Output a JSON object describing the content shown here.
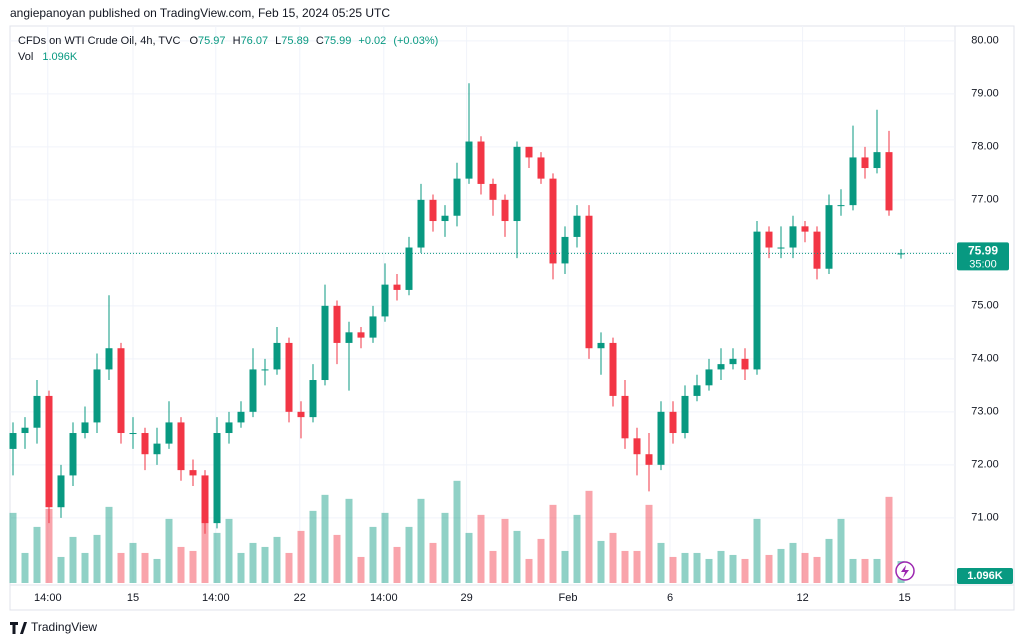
{
  "header": {
    "author_line": "angiepanoyan published on TradingView.com, Feb 15, 2024 05:25 UTC",
    "symbol": "CFDs on WTI Crude Oil, 4h, TVC",
    "ohlc_labels": [
      "O",
      "H",
      "L",
      "C"
    ],
    "vol_label": "Vol",
    "brand": "TradingView"
  },
  "chart_data": {
    "type": "candlestick",
    "open": [
      72.3,
      72.6,
      72.7,
      73.3,
      71.2,
      71.8,
      72.6,
      72.8,
      73.8,
      74.2,
      72.6,
      72.6,
      72.2,
      72.4,
      72.8,
      71.9,
      71.8,
      70.9,
      72.6,
      72.8,
      73.0,
      73.8,
      73.8,
      74.3,
      73.0,
      72.9,
      73.6,
      75.0,
      74.3,
      74.5,
      74.4,
      74.8,
      75.4,
      75.3,
      76.1,
      77.0,
      76.6,
      76.7,
      77.4,
      78.1,
      77.3,
      77.0,
      76.6,
      78.0,
      77.8,
      77.4,
      75.8,
      76.3,
      76.7,
      74.2,
      74.3,
      73.3,
      72.5,
      72.2,
      72.0,
      73.0,
      72.6,
      73.3,
      73.5,
      73.8,
      73.9,
      74.0,
      73.8,
      76.4,
      76.1,
      76.1,
      76.5,
      76.4,
      75.7,
      76.9,
      76.9,
      77.8,
      77.6,
      77.9,
      75.97
    ],
    "high": [
      72.8,
      72.9,
      73.6,
      73.4,
      72.0,
      72.8,
      73.1,
      74.1,
      75.2,
      74.3,
      72.9,
      72.7,
      72.7,
      73.2,
      72.9,
      72.1,
      71.9,
      72.9,
      73.0,
      73.2,
      74.2,
      74.0,
      74.6,
      74.4,
      73.2,
      73.9,
      75.4,
      75.1,
      74.7,
      74.6,
      75.0,
      75.8,
      75.6,
      76.3,
      77.3,
      77.1,
      76.9,
      77.7,
      79.2,
      78.2,
      77.4,
      77.1,
      78.1,
      78.0,
      77.9,
      77.5,
      76.5,
      76.9,
      76.9,
      74.5,
      74.4,
      73.6,
      72.7,
      72.6,
      73.2,
      73.2,
      73.5,
      73.7,
      74.0,
      74.2,
      74.2,
      74.2,
      76.6,
      76.5,
      76.5,
      76.7,
      76.6,
      76.5,
      77.1,
      77.2,
      78.4,
      78.0,
      78.7,
      78.3,
      76.07
    ],
    "low": [
      71.8,
      72.3,
      72.4,
      70.9,
      71.0,
      71.6,
      72.5,
      72.6,
      73.6,
      72.4,
      72.3,
      71.9,
      72.0,
      72.3,
      71.7,
      71.6,
      70.7,
      70.8,
      72.4,
      72.7,
      72.9,
      73.5,
      73.7,
      72.8,
      72.5,
      72.8,
      73.5,
      73.9,
      73.4,
      74.2,
      74.3,
      74.7,
      75.1,
      75.2,
      76.0,
      76.4,
      76.3,
      76.5,
      77.3,
      77.1,
      76.7,
      76.3,
      75.9,
      77.6,
      77.3,
      75.5,
      75.6,
      76.1,
      74.0,
      73.7,
      73.1,
      72.3,
      71.8,
      71.5,
      71.9,
      72.4,
      72.5,
      73.2,
      73.4,
      73.6,
      73.8,
      73.6,
      73.7,
      75.9,
      75.9,
      75.9,
      76.2,
      75.5,
      75.6,
      76.7,
      76.8,
      77.4,
      77.5,
      76.7,
      75.89
    ],
    "close": [
      72.6,
      72.7,
      73.3,
      71.2,
      71.8,
      72.6,
      72.8,
      73.8,
      74.2,
      72.6,
      72.6,
      72.2,
      72.4,
      72.8,
      71.9,
      71.8,
      70.9,
      72.6,
      72.8,
      73.0,
      73.8,
      73.8,
      74.3,
      73.0,
      72.9,
      73.6,
      75.0,
      74.3,
      74.5,
      74.4,
      74.8,
      75.4,
      75.3,
      76.1,
      77.0,
      76.6,
      76.7,
      77.4,
      78.1,
      77.3,
      77.0,
      76.6,
      78.0,
      77.8,
      77.4,
      75.8,
      76.3,
      76.7,
      74.2,
      74.3,
      73.3,
      72.5,
      72.2,
      72.0,
      73.0,
      72.6,
      73.3,
      73.5,
      73.8,
      73.9,
      74.0,
      73.8,
      76.4,
      76.1,
      76.1,
      76.5,
      76.4,
      75.7,
      76.9,
      76.9,
      77.8,
      77.6,
      77.9,
      76.8,
      75.99
    ],
    "volume": [
      3.5,
      1.5,
      2.8,
      3.7,
      1.3,
      2.3,
      1.5,
      2.4,
      3.8,
      1.5,
      2.0,
      1.5,
      1.2,
      3.2,
      1.8,
      1.6,
      3.0,
      2.5,
      3.2,
      1.5,
      2.0,
      1.8,
      2.3,
      1.5,
      2.6,
      3.6,
      4.4,
      2.4,
      4.2,
      1.3,
      2.8,
      3.5,
      1.8,
      2.8,
      4.2,
      2.0,
      3.5,
      5.1,
      2.5,
      3.4,
      1.6,
      3.2,
      2.6,
      1.2,
      2.2,
      3.9,
      1.6,
      3.4,
      4.6,
      2.1,
      2.5,
      1.6,
      1.6,
      3.9,
      2.0,
      1.3,
      1.5,
      1.5,
      1.2,
      1.6,
      1.4,
      1.2,
      3.2,
      1.4,
      1.7,
      2.0,
      1.5,
      1.3,
      2.2,
      3.2,
      1.2,
      1.2,
      1.2,
      4.3,
      1.096
    ],
    "last_volume_label": "1.096K",
    "change": {
      "value": 0.02,
      "label": "+0.02"
    },
    "change_pct": {
      "value": 0.03,
      "label": "(+0.03%)"
    },
    "countdown": "35:00",
    "ylim": [
      69.77,
      80.28
    ],
    "yticks": [
      {
        "value": 71,
        "label": "71.00"
      },
      {
        "value": 72,
        "label": "72.00"
      },
      {
        "value": 73,
        "label": "73.00"
      },
      {
        "value": 74,
        "label": "74.00"
      },
      {
        "value": 75,
        "label": "75.00"
      },
      {
        "value": 76,
        "label": "76.00"
      },
      {
        "value": 77,
        "label": "77.00"
      },
      {
        "value": 78,
        "label": "78.00"
      },
      {
        "value": 79,
        "label": "79.00"
      },
      {
        "value": 80,
        "label": "80.00"
      }
    ],
    "xticks": [
      {
        "value": 2.9,
        "label": "14:00"
      },
      {
        "value": 10,
        "label": "15"
      },
      {
        "value": 16.9,
        "label": "14:00"
      },
      {
        "value": 23.9,
        "label": "22"
      },
      {
        "value": 30.9,
        "label": "14:00"
      },
      {
        "value": 37.8,
        "label": "29"
      },
      {
        "value": 46.25,
        "label": "Feb"
      },
      {
        "value": 54.75,
        "label": "6"
      },
      {
        "value": 65.8,
        "label": "12"
      },
      {
        "value": 74.3,
        "label": "15"
      }
    ],
    "volume_ylim": [
      0,
      27.8
    ],
    "up_color": "#089981",
    "down_color": "#f23645",
    "grid": true
  }
}
